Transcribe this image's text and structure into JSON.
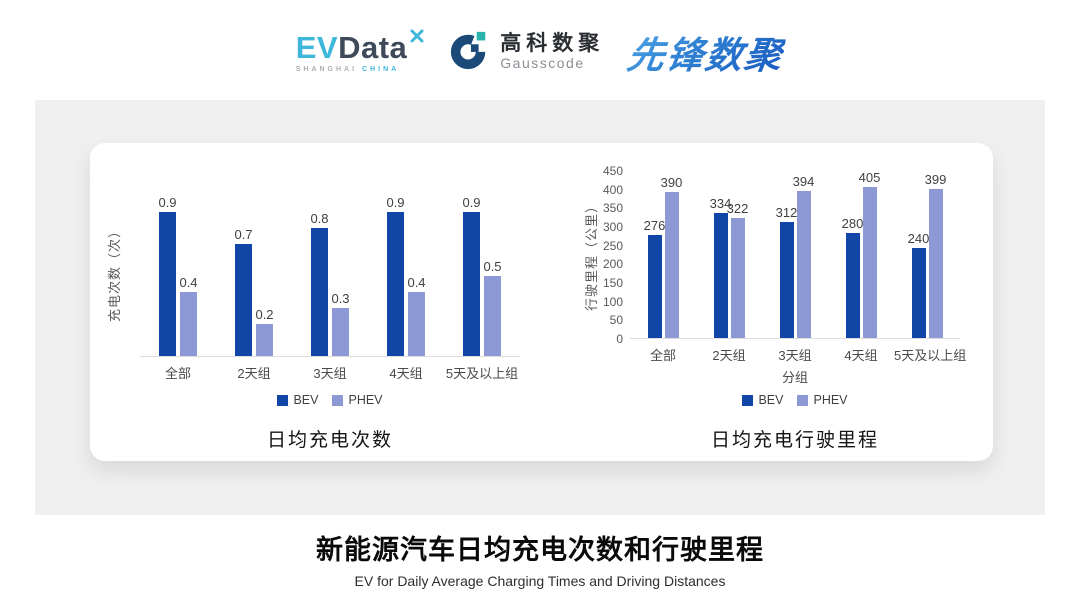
{
  "header": {
    "evdata_logo": {
      "ev": "EV",
      "data": "Data",
      "sub_left": "SHANGHAI",
      "sub_right": "CHINA"
    },
    "gausscode_logo": {
      "name_cn": "高科数聚",
      "name_en": "Gausscode"
    },
    "xianfeng_logo": {
      "text": "先锋数聚"
    }
  },
  "colors": {
    "bev": "#1146A6",
    "phev": "#8C99D4",
    "evdata_cyan": "#3EB7DB",
    "evdata_dark": "#3E4A59",
    "gausscode_navy": "#1B4A78",
    "gausscode_teal": "#2BB3AE",
    "xianfeng_blue": "#2878CC",
    "axis_line": "#DCDCDC"
  },
  "chart_data": [
    {
      "type": "bar",
      "title": "日均充电次数",
      "ylabel": "充电次数（次）",
      "xlabel": "",
      "categories": [
        "全部",
        "2天组",
        "3天组",
        "4天组",
        "5天及以上组"
      ],
      "series": [
        {
          "name": "BEV",
          "color": "#1146A6",
          "values": [
            0.9,
            0.7,
            0.8,
            0.9,
            0.9
          ]
        },
        {
          "name": "PHEV",
          "color": "#8C99D4",
          "values": [
            0.4,
            0.2,
            0.3,
            0.4,
            0.5
          ]
        }
      ],
      "ylim": [
        0,
        1.05
      ],
      "grid": false,
      "legend_position": "bottom"
    },
    {
      "type": "bar",
      "title": "日均充电行驶里程",
      "ylabel": "行驶里程（公里）",
      "xlabel": "分组",
      "categories": [
        "全部",
        "2天组",
        "3天组",
        "4天组",
        "5天及以上组"
      ],
      "series": [
        {
          "name": "BEV",
          "color": "#1146A6",
          "values": [
            276,
            334,
            312,
            280,
            240
          ]
        },
        {
          "name": "PHEV",
          "color": "#8C99D4",
          "values": [
            390,
            322,
            394,
            405,
            399
          ]
        }
      ],
      "ylim": [
        0,
        450
      ],
      "yticks": [
        0,
        50,
        100,
        150,
        200,
        250,
        300,
        350,
        400,
        450
      ],
      "grid": false,
      "legend_position": "bottom"
    }
  ],
  "footer": {
    "title": "新能源汽车日均充电次数和行驶里程",
    "subtitle": "EV for Daily Average Charging Times and Driving Distances"
  }
}
